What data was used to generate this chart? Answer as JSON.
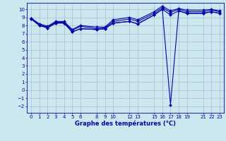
{
  "background_color": "#cce8ee",
  "grid_color": "#aabbcc",
  "line_color": "#0000bb",
  "xlabel": "Graphe des températures (°C)",
  "xlim": [
    -0.5,
    23.5
  ],
  "ylim": [
    -2.8,
    10.8
  ],
  "yticks": [
    -2,
    -1,
    0,
    1,
    2,
    3,
    4,
    5,
    6,
    7,
    8,
    9,
    10
  ],
  "xtick_positions": [
    0,
    1,
    2,
    3,
    4,
    5,
    6,
    8,
    9,
    10,
    12,
    13,
    15,
    16,
    17,
    18,
    19,
    21,
    22,
    23
  ],
  "xtick_labels": [
    "0",
    "1",
    "2",
    "3",
    "4",
    "5",
    "6",
    "8",
    "9",
    "10",
    "12",
    "13",
    "15",
    "16",
    "17",
    "18",
    "19",
    "21",
    "22",
    "23"
  ],
  "series_x": [
    0,
    1,
    2,
    3,
    4,
    5,
    6,
    8,
    9,
    10,
    12,
    13,
    15,
    16,
    17,
    18,
    19,
    21,
    22,
    23
  ],
  "series": [
    [
      8.8,
      8.0,
      7.7,
      8.3,
      8.3,
      7.2,
      7.6,
      7.5,
      7.6,
      8.3,
      8.5,
      8.2,
      9.3,
      10.0,
      9.3,
      9.8,
      9.5,
      9.5,
      9.7,
      9.5
    ],
    [
      8.9,
      8.1,
      7.8,
      8.4,
      8.4,
      7.4,
      7.9,
      7.6,
      7.7,
      8.5,
      8.8,
      8.5,
      9.5,
      10.2,
      9.6,
      10.0,
      9.7,
      9.7,
      9.9,
      9.7
    ],
    [
      8.9,
      8.2,
      7.9,
      8.5,
      8.5,
      7.5,
      8.0,
      7.8,
      7.8,
      8.7,
      9.0,
      8.7,
      9.7,
      10.4,
      9.8,
      10.1,
      9.9,
      9.9,
      10.0,
      9.8
    ]
  ],
  "spike_series": [
    [
      8.8,
      8.0,
      7.7,
      8.3,
      8.3,
      7.2,
      7.6,
      7.5,
      7.6,
      8.3,
      8.5,
      8.2,
      9.3,
      10.0,
      -1.8,
      9.8,
      9.5,
      9.5,
      9.7,
      9.5
    ]
  ],
  "marker": "D",
  "markersize": 2.0,
  "linewidth": 0.8,
  "tick_fontsize": 5.0,
  "xlabel_fontsize": 6.0
}
